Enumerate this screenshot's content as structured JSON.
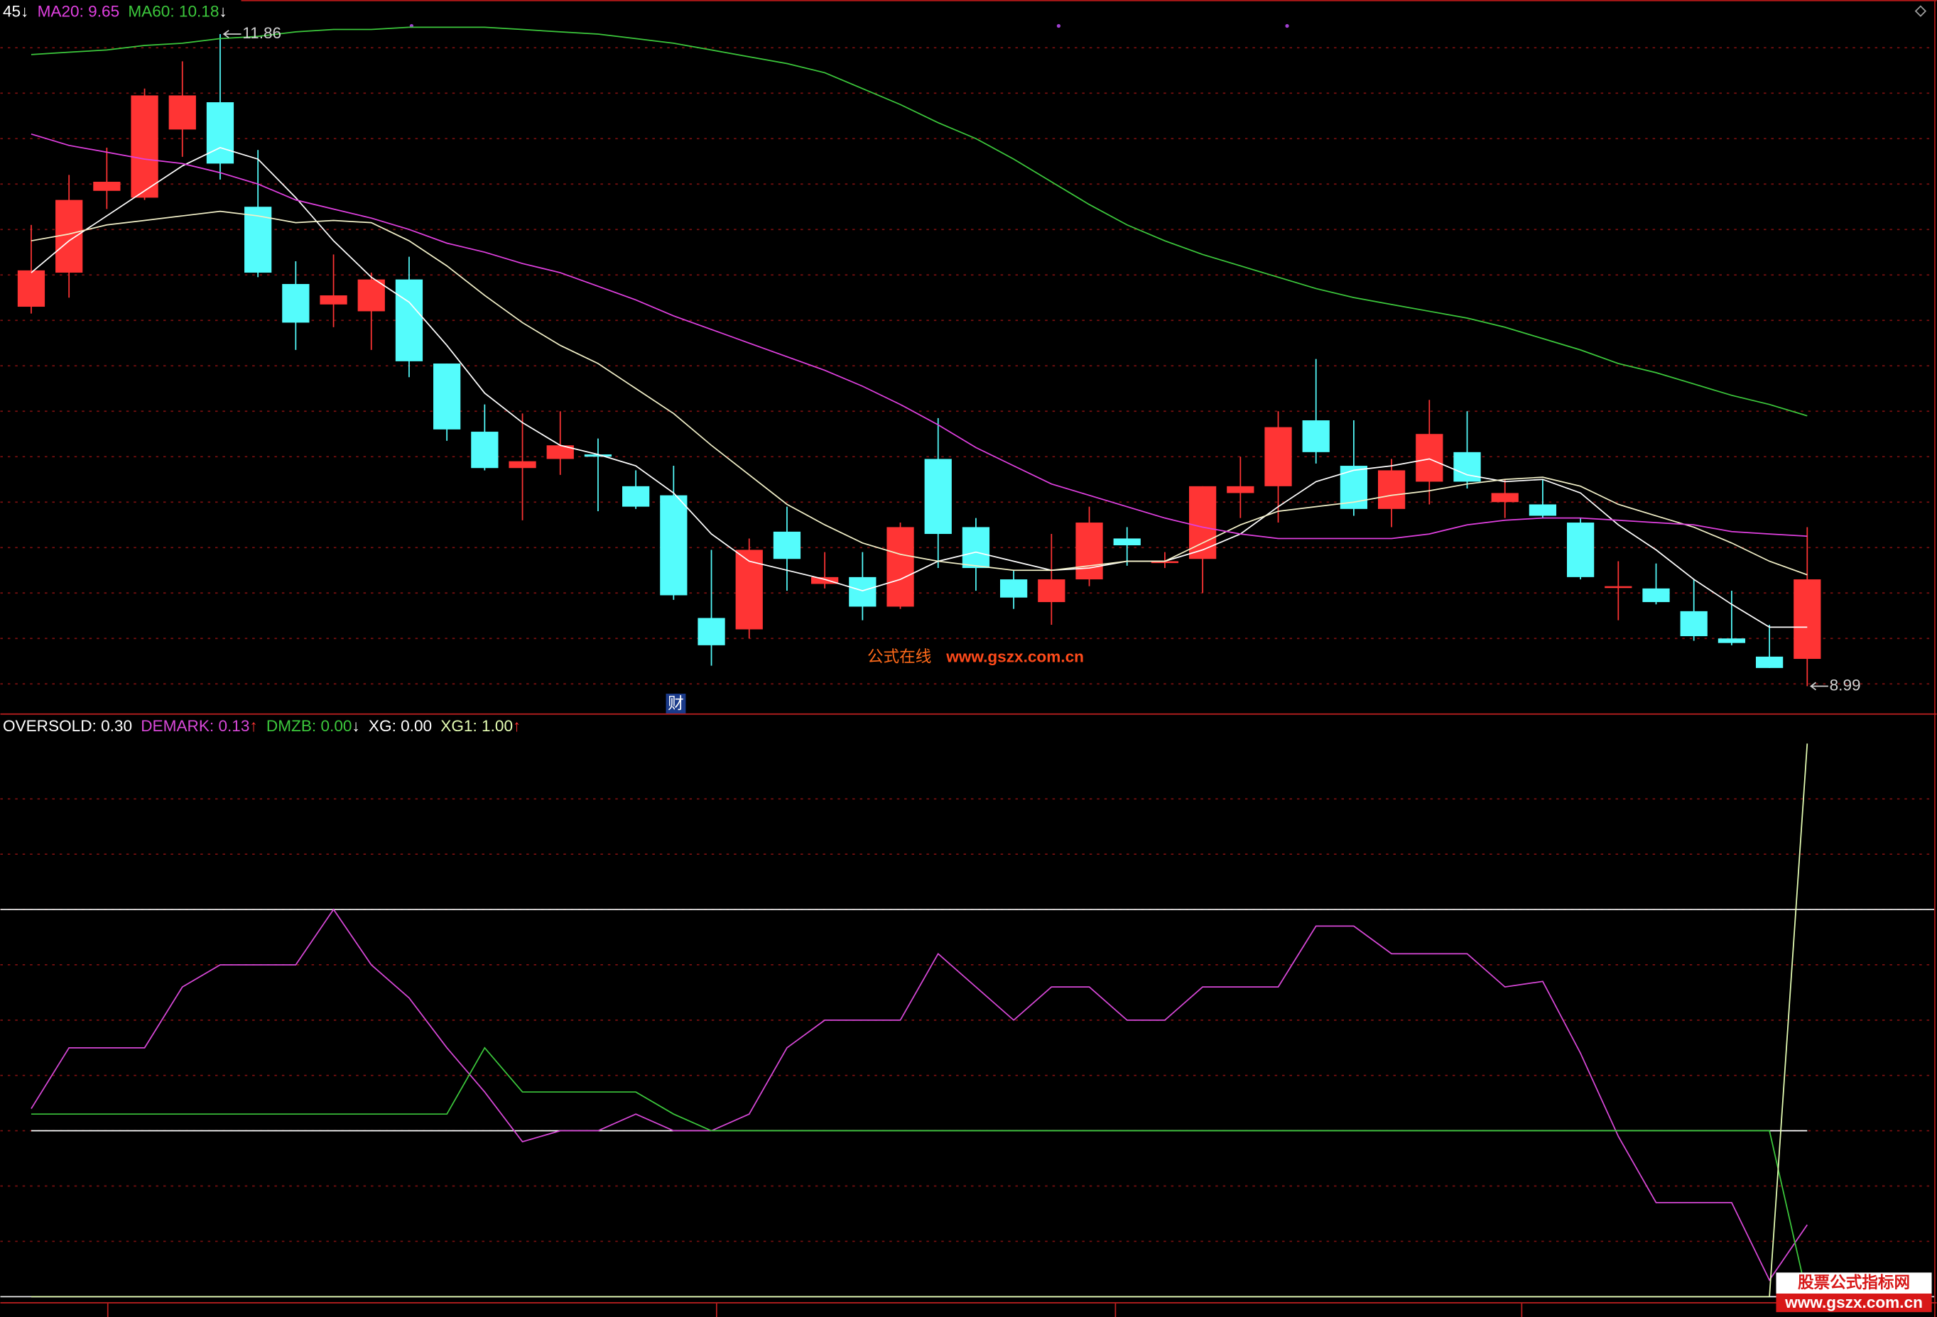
{
  "chart_data": [
    {
      "type": "candlestick",
      "categories": [
        null,
        null,
        null,
        null,
        null,
        null,
        null,
        null,
        null,
        null,
        null,
        null,
        null,
        null,
        null,
        null,
        null,
        null,
        null,
        null,
        null,
        null,
        null,
        null,
        null,
        null,
        null,
        null,
        null,
        null,
        null,
        null,
        null,
        null,
        null,
        null,
        null,
        null,
        null,
        null,
        null,
        null,
        null,
        null,
        null,
        null,
        null,
        null
      ],
      "open": [
        10.66,
        10.81,
        11.17,
        11.14,
        11.44,
        11.56,
        11.1,
        10.76,
        10.67,
        10.64,
        10.78,
        10.41,
        10.11,
        9.95,
        9.99,
        10.01,
        9.87,
        9.83,
        9.29,
        9.24,
        9.67,
        9.44,
        9.47,
        9.34,
        9.99,
        9.69,
        9.46,
        9.36,
        9.46,
        9.64,
        9.54,
        9.55,
        9.84,
        9.87,
        10.16,
        9.96,
        9.77,
        9.89,
        10.02,
        9.8,
        9.79,
        9.71,
        9.43,
        9.42,
        9.32,
        9.2,
        9.12,
        9.11
      ],
      "high": [
        11.02,
        11.24,
        11.36,
        11.62,
        11.74,
        11.86,
        11.35,
        10.86,
        10.89,
        10.81,
        10.88,
        10.41,
        10.23,
        10.19,
        10.2,
        10.08,
        9.94,
        9.96,
        9.59,
        9.64,
        9.78,
        9.58,
        9.58,
        9.71,
        10.17,
        9.73,
        9.5,
        9.66,
        9.78,
        9.69,
        9.58,
        9.87,
        10.0,
        10.2,
        10.43,
        10.16,
        9.99,
        10.25,
        10.2,
        9.9,
        9.9,
        9.73,
        9.54,
        9.53,
        9.46,
        9.41,
        9.26,
        9.69
      ],
      "low": [
        10.63,
        10.7,
        11.09,
        11.13,
        11.32,
        11.22,
        10.79,
        10.47,
        10.57,
        10.47,
        10.35,
        10.07,
        9.94,
        9.72,
        9.92,
        9.76,
        9.77,
        9.37,
        9.08,
        9.2,
        9.41,
        9.42,
        9.28,
        9.33,
        9.51,
        9.41,
        9.33,
        9.26,
        9.43,
        9.52,
        9.51,
        9.4,
        9.73,
        9.71,
        9.97,
        9.74,
        9.69,
        9.79,
        9.86,
        9.73,
        9.73,
        9.46,
        9.28,
        9.35,
        9.19,
        9.17,
        9.07,
        8.99
      ],
      "close": [
        10.82,
        11.13,
        11.21,
        11.59,
        11.59,
        11.29,
        10.81,
        10.59,
        10.71,
        10.78,
        10.42,
        10.12,
        9.95,
        9.98,
        10.05,
        10.0,
        9.78,
        9.39,
        9.17,
        9.59,
        9.55,
        9.47,
        9.34,
        9.69,
        9.66,
        9.51,
        9.38,
        9.46,
        9.71,
        9.61,
        9.54,
        9.87,
        9.87,
        10.13,
        10.02,
        9.77,
        9.94,
        10.1,
        9.89,
        9.84,
        9.74,
        9.47,
        9.43,
        9.36,
        9.21,
        9.18,
        9.07,
        9.46
      ],
      "up_color": "#ff3434",
      "down_color": "#54fcfc",
      "ylim": [
        8.87,
        12.01
      ],
      "gridlines": [
        11.8,
        11.6,
        11.4,
        11.2,
        11.0,
        10.8,
        10.6,
        10.4,
        10.2,
        10.0,
        9.8,
        9.6,
        9.4,
        9.2,
        9.0
      ],
      "series": [
        {
          "name": "45",
          "arrow": "↓",
          "arrow_color": "#ffffff",
          "color": "#ffffff",
          "values": [
            10.81,
            10.95,
            11.06,
            11.17,
            11.28,
            11.36,
            11.31,
            11.14,
            10.95,
            10.79,
            10.68,
            10.49,
            10.28,
            10.15,
            10.05,
            10.01,
            9.96,
            9.84,
            9.66,
            9.54,
            9.5,
            9.46,
            9.41,
            9.46,
            9.54,
            9.58,
            9.54,
            9.5,
            9.51,
            9.54,
            9.54,
            9.59,
            9.66,
            9.78,
            9.89,
            9.94,
            9.96,
            9.99,
            9.92,
            9.89,
            9.9,
            9.84,
            9.7,
            9.59,
            9.46,
            9.35,
            9.25,
            9.25
          ]
        },
        {
          "color": "#f2f0c8",
          "values": [
            10.95,
            10.98,
            11.02,
            11.04,
            11.06,
            11.08,
            11.06,
            11.03,
            11.04,
            11.03,
            10.95,
            10.84,
            10.71,
            10.59,
            10.49,
            10.41,
            10.3,
            10.19,
            10.05,
            9.92,
            9.79,
            9.7,
            9.62,
            9.57,
            9.54,
            9.52,
            9.5,
            9.5,
            9.52,
            9.54,
            9.54,
            9.62,
            9.7,
            9.76,
            9.78,
            9.8,
            9.83,
            9.85,
            9.88,
            9.9,
            9.91,
            9.87,
            9.79,
            9.74,
            9.69,
            9.62,
            9.54,
            9.48
          ]
        },
        {
          "name": "MA20: 9.65",
          "color": "#e040e0",
          "values": [
            11.42,
            11.37,
            11.34,
            11.31,
            11.29,
            11.25,
            11.2,
            11.13,
            11.09,
            11.05,
            11.0,
            10.94,
            10.9,
            10.85,
            10.81,
            10.75,
            10.69,
            10.62,
            10.56,
            10.5,
            10.44,
            10.38,
            10.31,
            10.23,
            10.14,
            10.04,
            9.96,
            9.88,
            9.83,
            9.78,
            9.73,
            9.69,
            9.66,
            9.64,
            9.64,
            9.64,
            9.64,
            9.66,
            9.7,
            9.72,
            9.73,
            9.73,
            9.72,
            9.71,
            9.7,
            9.67,
            9.66,
            9.65
          ]
        },
        {
          "name": "MA60: 10.18",
          "arrow": "↓",
          "arrow_color": "#ffffff",
          "color": "#3cc83c",
          "values": [
            11.77,
            11.78,
            11.79,
            11.81,
            11.82,
            11.84,
            11.85,
            11.87,
            11.88,
            11.88,
            11.89,
            11.89,
            11.89,
            11.88,
            11.87,
            11.86,
            11.84,
            11.82,
            11.79,
            11.76,
            11.73,
            11.69,
            11.62,
            11.55,
            11.47,
            11.4,
            11.31,
            11.21,
            11.11,
            11.02,
            10.95,
            10.89,
            10.84,
            10.79,
            10.74,
            10.7,
            10.67,
            10.64,
            10.61,
            10.57,
            10.52,
            10.47,
            10.41,
            10.37,
            10.32,
            10.27,
            10.23,
            10.18
          ]
        }
      ]
    },
    {
      "type": "line",
      "categories": [
        null,
        null,
        null,
        null,
        null,
        null,
        null,
        null,
        null,
        null,
        null,
        null,
        null,
        null,
        null,
        null,
        null,
        null,
        null,
        null,
        null,
        null,
        null,
        null,
        null,
        null,
        null,
        null,
        null,
        null,
        null,
        null,
        null,
        null,
        null,
        null,
        null,
        null,
        null,
        null,
        null,
        null,
        null,
        null,
        null,
        null,
        null,
        null
      ],
      "ylim": [
        -0.01,
        1.05
      ],
      "gridlines": [
        0.9,
        0.8,
        0.7,
        0.6,
        0.5,
        0.4,
        0.3,
        0.2,
        0.1
      ],
      "ref_lines": [
        0.7,
        0
      ],
      "series": [
        {
          "name": "OVERSOLD: 0.30",
          "color": "#ffffff",
          "values": [
            0.3,
            0.3,
            0.3,
            0.3,
            0.3,
            0.3,
            0.3,
            0.3,
            0.3,
            0.3,
            0.3,
            0.3,
            0.3,
            0.3,
            0.3,
            0.3,
            0.3,
            0.3,
            0.3,
            0.3,
            0.3,
            0.3,
            0.3,
            0.3,
            0.3,
            0.3,
            0.3,
            0.3,
            0.3,
            0.3,
            0.3,
            0.3,
            0.3,
            0.3,
            0.3,
            0.3,
            0.3,
            0.3,
            0.3,
            0.3,
            0.3,
            0.3,
            0.3,
            0.3,
            0.3,
            0.3,
            0.3,
            0.3
          ]
        },
        {
          "name": "DEMARK: 0.13",
          "arrow": "↑",
          "arrow_color": "#ff3434",
          "color": "#d848d8",
          "values": [
            0.34,
            0.45,
            0.45,
            0.45,
            0.56,
            0.6,
            0.6,
            0.6,
            0.7,
            0.6,
            0.54,
            0.45,
            0.37,
            0.28,
            0.3,
            0.3,
            0.33,
            0.3,
            0.3,
            0.33,
            0.45,
            0.5,
            0.5,
            0.5,
            0.62,
            0.56,
            0.5,
            0.56,
            0.56,
            0.5,
            0.5,
            0.56,
            0.56,
            0.56,
            0.67,
            0.67,
            0.62,
            0.62,
            0.62,
            0.56,
            0.57,
            0.44,
            0.29,
            0.17,
            0.17,
            0.17,
            0.03,
            0.13
          ]
        },
        {
          "name": "DMZB: 0.00",
          "arrow": "↓",
          "arrow_color": "#ffffff",
          "color": "#3cc83c",
          "values": [
            0.33,
            0.33,
            0.33,
            0.33,
            0.33,
            0.33,
            0.33,
            0.33,
            0.33,
            0.33,
            0.33,
            0.33,
            0.45,
            0.37,
            0.37,
            0.37,
            0.37,
            0.33,
            0.3,
            0.3,
            0.3,
            0.3,
            0.3,
            0.3,
            0.3,
            0.3,
            0.3,
            0.3,
            0.3,
            0.3,
            0.3,
            0.3,
            0.3,
            0.3,
            0.3,
            0.3,
            0.3,
            0.3,
            0.3,
            0.3,
            0.3,
            0.3,
            0.3,
            0.3,
            0.3,
            0.3,
            0.3,
            0
          ]
        },
        {
          "name": "XG: 0.00",
          "color": "#ffffff",
          "values": [
            0,
            0,
            0,
            0,
            0,
            0,
            0,
            0,
            0,
            0,
            0,
            0,
            0,
            0,
            0,
            0,
            0,
            0,
            0,
            0,
            0,
            0,
            0,
            0,
            0,
            0,
            0,
            0,
            0,
            0,
            0,
            0,
            0,
            0,
            0,
            0,
            0,
            0,
            0,
            0,
            0,
            0,
            0,
            0,
            0,
            0,
            0,
            0
          ]
        },
        {
          "name": "XG1: 1.00",
          "arrow": "↑",
          "arrow_color": "#ff3434",
          "color": "#e6ffb4",
          "values": [
            0,
            0,
            0,
            0,
            0,
            0,
            0,
            0,
            0,
            0,
            0,
            0,
            0,
            0,
            0,
            0,
            0,
            0,
            0,
            0,
            0,
            0,
            0,
            0,
            0,
            0,
            0,
            0,
            0,
            0,
            0,
            0,
            0,
            0,
            0,
            0,
            0,
            0,
            0,
            0,
            0,
            0,
            0,
            0,
            0,
            0,
            0,
            1
          ]
        }
      ]
    }
  ],
  "badge": "财",
  "watermark": {
    "name": "公式在线",
    "url": "www.gszx.com.cn"
  },
  "logo": {
    "name": "股票公式指标网",
    "url": "www.gszx.com.cn"
  }
}
